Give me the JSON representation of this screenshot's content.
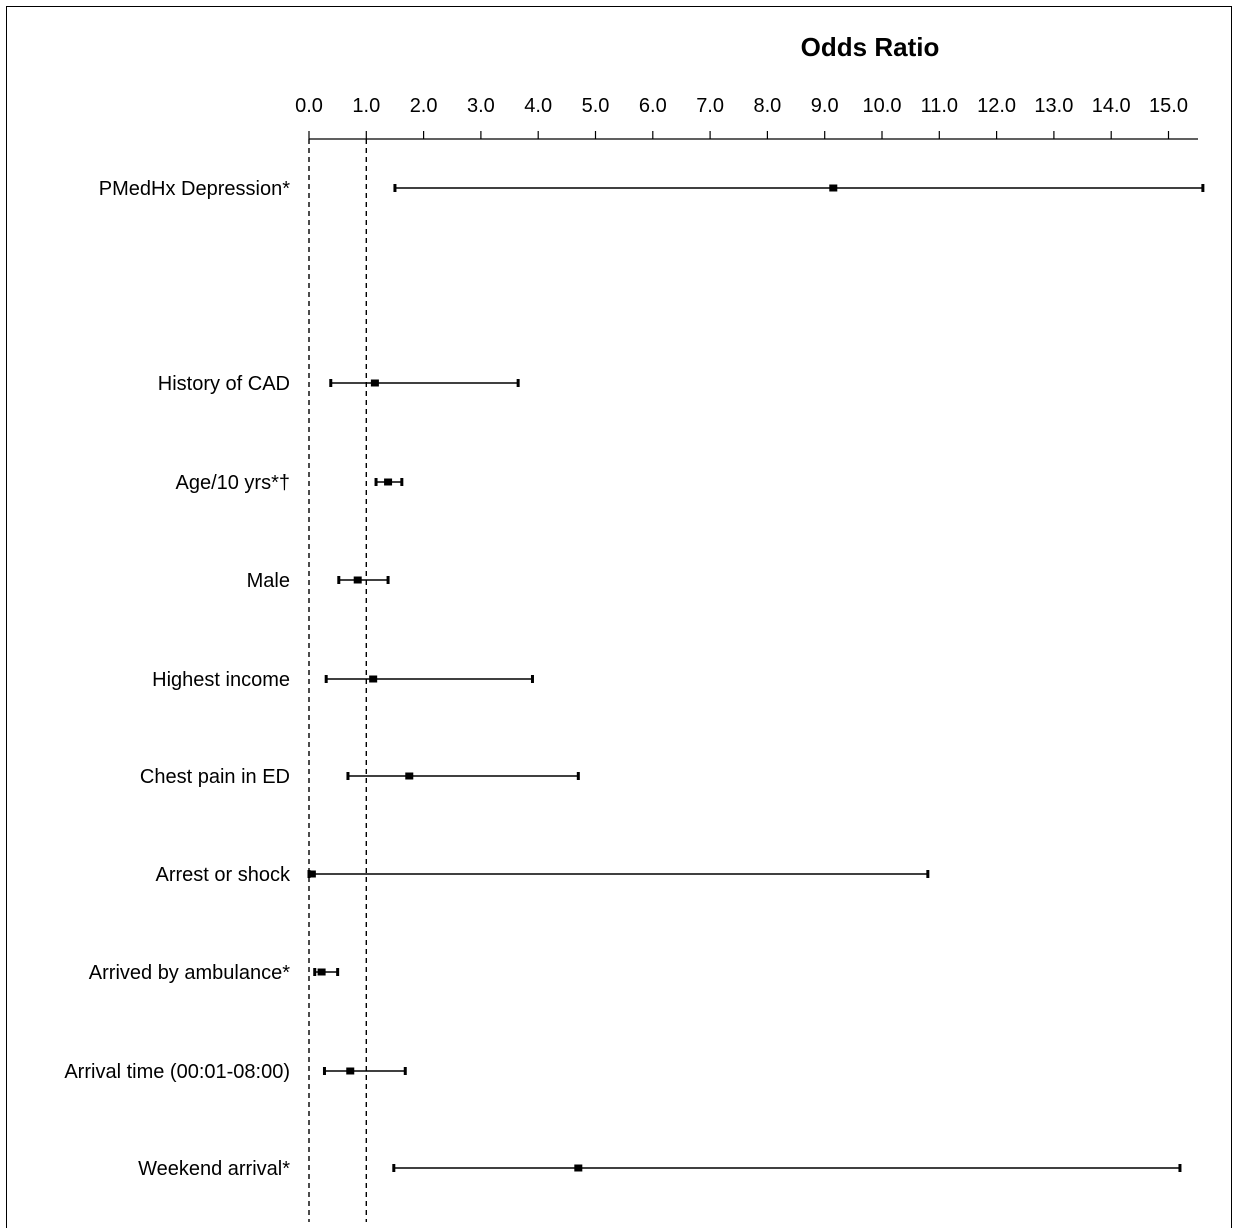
{
  "chart_data": {
    "type": "forest",
    "title": "Odds Ratio",
    "xlim": [
      0,
      15.5
    ],
    "x_ticks": [
      "0.0",
      "1.0",
      "2.0",
      "3.0",
      "4.0",
      "5.0",
      "6.0",
      "7.0",
      "8.0",
      "9.0",
      "10.0",
      "11.0",
      "12.0",
      "13.0",
      "14.0",
      "15.0"
    ],
    "reference_lines": [
      0,
      1
    ],
    "rows": [
      {
        "label": "PMedHx Depression*",
        "or": 9.15,
        "lower": 1.5,
        "upper": 15.6
      },
      {
        "label": "History of CAD",
        "or": 1.15,
        "lower": 0.38,
        "upper": 3.65
      },
      {
        "label": "Age/10 yrs*†",
        "or": 1.38,
        "lower": 1.17,
        "upper": 1.62
      },
      {
        "label": "Male",
        "or": 0.85,
        "lower": 0.52,
        "upper": 1.38
      },
      {
        "label": "Highest income",
        "or": 1.12,
        "lower": 0.3,
        "upper": 3.9
      },
      {
        "label": "Chest pain in ED",
        "or": 1.75,
        "lower": 0.68,
        "upper": 4.7
      },
      {
        "label": "Arrest or shock",
        "or": 0.05,
        "lower": 0.0,
        "upper": 10.8
      },
      {
        "label": "Arrived by ambulance*",
        "or": 0.22,
        "lower": 0.1,
        "upper": 0.5
      },
      {
        "label": "Arrival time (00:01-08:00)",
        "or": 0.72,
        "lower": 0.27,
        "upper": 1.68
      },
      {
        "label": "Weekend arrival*",
        "or": 4.7,
        "lower": 1.48,
        "upper": 15.2
      }
    ]
  }
}
